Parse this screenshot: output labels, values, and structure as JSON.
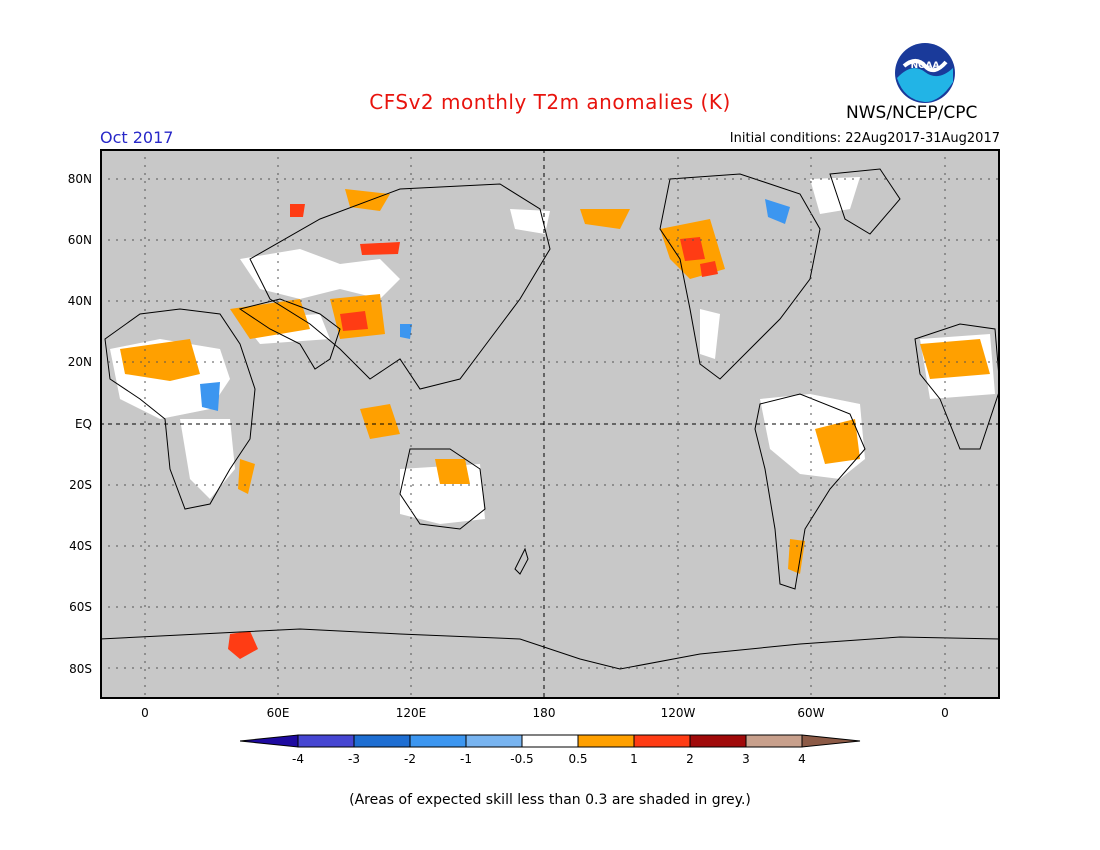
{
  "header": {
    "title": "CFSv2 monthly T2m anomalies (K)",
    "month_label": "Oct 2017",
    "initial_conditions": "Initial conditions: 22Aug2017-31Aug2017",
    "agency": "NWS/NCEP/CPC",
    "logo_text": "NOAA"
  },
  "map": {
    "lat_labels": [
      "80N",
      "60N",
      "40N",
      "20N",
      "EQ",
      "20S",
      "40S",
      "60S",
      "80S"
    ],
    "lon_labels": [
      "0",
      "60E",
      "120E",
      "180",
      "120W",
      "60W",
      "0"
    ],
    "skill_mask_color": "#c8c8c8"
  },
  "legend": {
    "tick_labels": [
      "-4",
      "-3",
      "-2",
      "-1",
      "-0.5",
      "0.5",
      "1",
      "2",
      "3",
      "4"
    ],
    "colors": [
      "#1e0aa0",
      "#4646d2",
      "#1e6ed2",
      "#3c96f0",
      "#78b4f0",
      "#ffffff",
      "#ffa000",
      "#ff3c14",
      "#a00a0a",
      "#c8a08c",
      "#8c5a46"
    ]
  },
  "footnote": "(Areas of expected skill less than 0.3 are shaded in grey.)"
}
